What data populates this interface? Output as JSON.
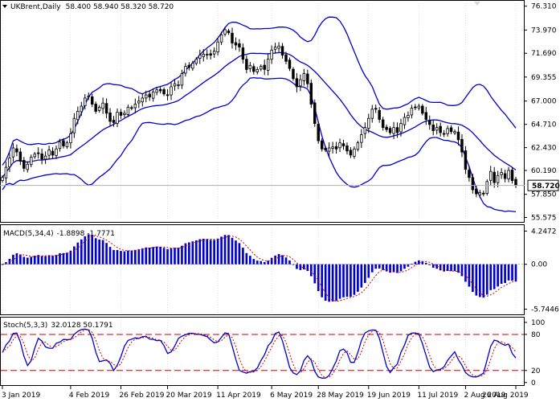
{
  "chart_data": [
    {
      "type": "candlestick",
      "panel": "price",
      "symbol": "UKBrent",
      "timeframe": "Daily",
      "ohlc_header": "58.400 58.940 58.320 58.720",
      "last_price": "58.720",
      "yticks": [
        "76.310",
        "73.970",
        "71.690",
        "69.355",
        "67.000",
        "64.710",
        "62.430",
        "60.190",
        "57.850",
        "55.575"
      ],
      "ylim": [
        55.3,
        76.6
      ],
      "overlay": "Bollinger Bands",
      "close_values": [
        59.5,
        60.5,
        61.4,
        62.4,
        62.0,
        61.1,
        60.4,
        60.8,
        61.5,
        61.8,
        61.9,
        61.3,
        61.6,
        62.2,
        61.7,
        62.3,
        63.0,
        62.6,
        62.9,
        63.8,
        65.3,
        66.0,
        66.5,
        67.3,
        67.5,
        66.7,
        66.0,
        66.4,
        66.8,
        65.8,
        65.0,
        64.9,
        65.9,
        65.6,
        65.8,
        66.4,
        66.3,
        66.7,
        67.0,
        67.3,
        67.6,
        67.4,
        67.9,
        68.1,
        68.0,
        67.7,
        67.6,
        68.4,
        68.7,
        68.6,
        69.7,
        70.4,
        70.3,
        70.7,
        71.1,
        71.5,
        71.6,
        71.6,
        71.5,
        71.9,
        72.8,
        73.5,
        74.0,
        73.7,
        72.7,
        72.5,
        72.3,
        71.1,
        70.1,
        70.5,
        69.9,
        70.1,
        70.4,
        70.1,
        71.1,
        72.0,
        72.3,
        72.4,
        71.5,
        70.9,
        70.2,
        69.2,
        68.4,
        69.1,
        69.7,
        68.7,
        66.7,
        64.8,
        63.1,
        62.3,
        62.2,
        62.4,
        62.5,
        62.3,
        62.9,
        62.6,
        62.1,
        61.7,
        62.3,
        62.9,
        63.7,
        64.4,
        65.3,
        66.2,
        66.2,
        65.2,
        64.4,
        64.2,
        63.9,
        64.4,
        63.9,
        64.8,
        65.4,
        65.6,
        66.3,
        66.4,
        66.5,
        65.8,
        65.2,
        64.7,
        64.1,
        64.4,
        63.9,
        63.8,
        64.3,
        64.0,
        64.0,
        63.2,
        62.0,
        60.3,
        59.5,
        58.3,
        57.9,
        58.0,
        57.9,
        59.1,
        60.1,
        59.0,
        59.7,
        60.0,
        59.4,
        60.2,
        59.2,
        58.72
      ],
      "yaxis_tick_values": [
        76.31,
        73.97,
        71.69,
        69.355,
        67.0,
        64.71,
        62.43,
        60.19,
        57.85,
        55.575
      ]
    },
    {
      "type": "histogram",
      "panel": "macd",
      "label": "MACD(5,34,4)",
      "values_text": "-1.8898  -1.7771",
      "yticks": [
        "4.2472",
        "0.00",
        "-5.7446"
      ],
      "ylim": [
        -6.2,
        4.7
      ],
      "yaxis_tick_values": [
        4.2472,
        0.0,
        -5.7446
      ]
    },
    {
      "type": "line",
      "panel": "stochastic",
      "label": "Stoch(5,3,3)",
      "values_text": "32.0128  50.1791",
      "yticks": [
        "100",
        "80",
        "20",
        "0"
      ],
      "ylim": [
        -3,
        104
      ],
      "levels": [
        80,
        20
      ],
      "yaxis_tick_values": [
        100,
        80,
        20,
        0
      ]
    }
  ],
  "x_axis": {
    "labels": [
      "3 Jan 2019",
      "4 Feb 2019",
      "26 Feb 2019",
      "20 Mar 2019",
      "11 Apr 2019",
      "6 May 2019",
      "28 May 2019",
      "19 Jun 2019",
      "11 Jul 2019",
      "2 Aug 2019",
      "26 Aug 2019"
    ]
  },
  "colors": {
    "bands": "#0000cc",
    "candle": "#000000",
    "macd": "#0000cc",
    "signal": "#cc0000",
    "stoch_main": "#0000cc",
    "stoch_signal": "#cc0000",
    "levels": "#cc0000",
    "grid": "#c8c8c8"
  }
}
